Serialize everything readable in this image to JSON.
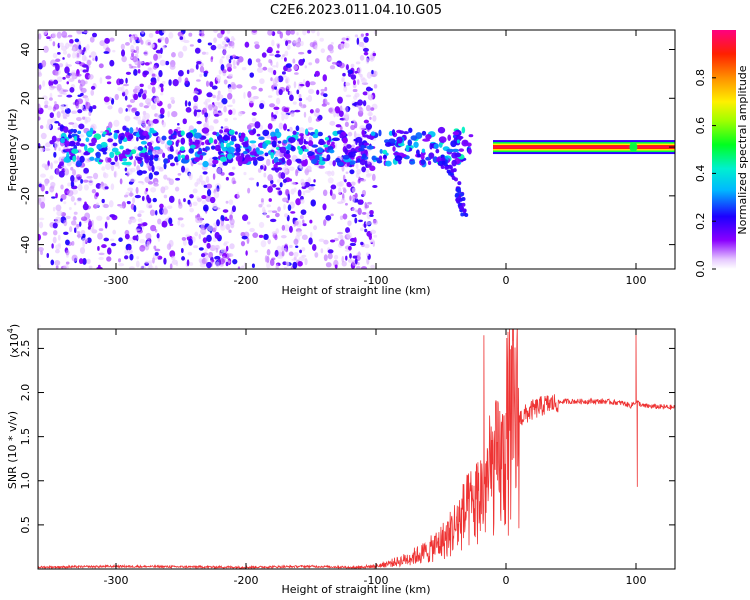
{
  "title": "C2E6.2023.011.04.10.G05",
  "chart_data": [
    {
      "type": "heatmap",
      "xlabel": "Height of straight line (km)",
      "ylabel": "Frequency (Hz)",
      "xlim": [
        -360,
        130
      ],
      "ylim": [
        -50,
        48
      ],
      "xticks": [
        -300,
        -200,
        -100,
        0,
        100
      ],
      "yticks": [
        -40,
        -20,
        0,
        20,
        40
      ],
      "colorbar": {
        "label": "Normalized spectral amplitude",
        "ticks": [
          "0.0",
          "0.2",
          "0.4",
          "0.6",
          "0.8"
        ],
        "range": [
          0,
          1
        ],
        "colormap": "rainbow"
      },
      "features": {
        "strong_line": {
          "x_start": -10,
          "x_end": 130,
          "frequency": 0,
          "amplitude": 0.95
        },
        "secondary_burst": {
          "x": 98,
          "frequency": 0,
          "amplitude": 0.5
        },
        "diffuse_scatter_x_range": [
          -360,
          -120
        ],
        "trail": [
          [
            -50,
            -5
          ],
          [
            -40,
            -12
          ],
          [
            -35,
            -22
          ],
          [
            -32,
            -28
          ]
        ]
      }
    },
    {
      "type": "line",
      "xlabel": "Height of straight line (km)",
      "ylabel": "SNR (10 * v/v)",
      "multiplier": "(x10",
      "multiplier_exp": "4",
      "multiplier_close": ")",
      "xlim": [
        -360,
        130
      ],
      "ylim": [
        0,
        2.72
      ],
      "xticks": [
        -300,
        -200,
        -100,
        0,
        100
      ],
      "yticks": [
        "0.5",
        "1.0",
        "1.5",
        "2.0",
        "2.5"
      ],
      "ytick_values": [
        0.5,
        1.0,
        1.5,
        2.0,
        2.5
      ],
      "series": [
        {
          "color": "#ee3333",
          "x": [
            -360,
            -300,
            -200,
            -150,
            -120,
            -100,
            -80,
            -60,
            -45,
            -35,
            -25,
            -18,
            -10,
            0,
            10,
            20,
            30,
            45,
            60,
            75,
            90,
            96,
            100,
            105,
            115,
            130
          ],
          "y": [
            0.02,
            0.03,
            0.02,
            0.03,
            0.02,
            0.04,
            0.12,
            0.25,
            0.45,
            0.7,
            0.9,
            1.1,
            1.4,
            1.55,
            1.7,
            1.8,
            1.86,
            1.9,
            1.9,
            1.9,
            1.88,
            1.85,
            1.9,
            1.85,
            1.84,
            1.83
          ]
        }
      ],
      "spikes": [
        {
          "x": -17,
          "y": 2.65
        },
        {
          "x": 100,
          "y": 2.72
        },
        {
          "x": 101,
          "y": 0.93
        }
      ]
    }
  ]
}
